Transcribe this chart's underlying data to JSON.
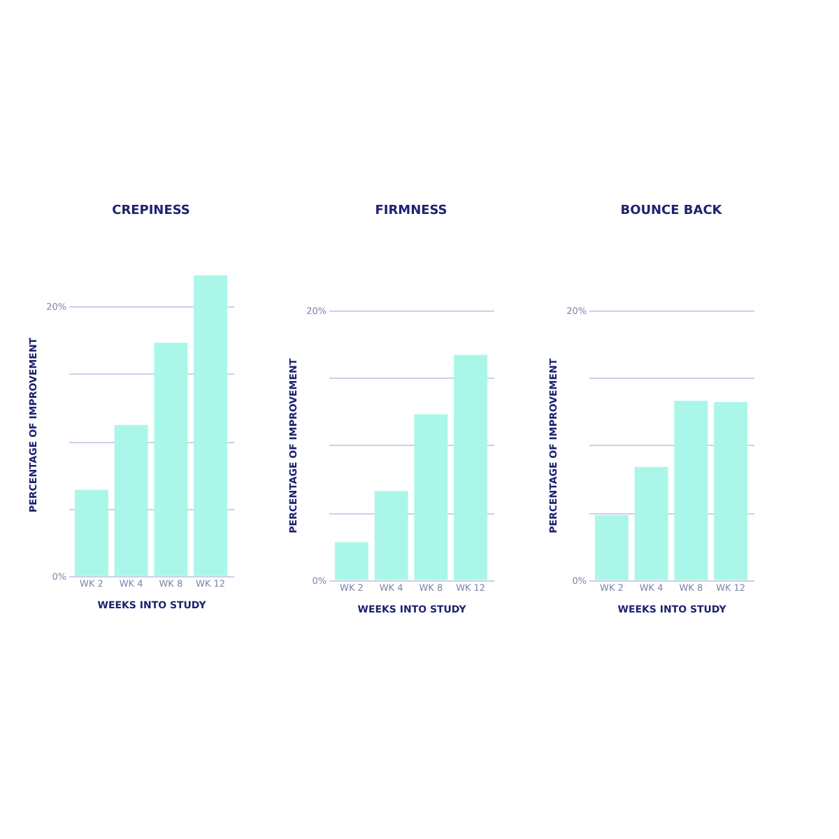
{
  "chart_data": [
    {
      "type": "bar",
      "title": "CREPINESS",
      "xlabel": "WEEKS INTO STUDY",
      "ylabel": "PERCENTAGE OF IMPROVEMENT",
      "categories": [
        "WK 2",
        "WK 4",
        "WK 8",
        "WK 12"
      ],
      "values": [
        6.4,
        11.2,
        17.3,
        22.3
      ],
      "color": "#aaf7e9",
      "ylim": [
        0,
        22.5
      ],
      "yticks": [
        {
          "value": 0,
          "label": "0%"
        },
        {
          "value": 5,
          "label": null
        },
        {
          "value": 10,
          "label": null
        },
        {
          "value": 15,
          "label": null
        },
        {
          "value": 20,
          "label": "20%"
        }
      ],
      "grid": "y"
    },
    {
      "type": "bar",
      "title": "FIRMNESS",
      "xlabel": "WEEKS INTO STUDY",
      "ylabel": "PERCENTAGE OF IMPROVEMENT",
      "categories": [
        "WK 2",
        "WK 4",
        "WK 8",
        "WK 12"
      ],
      "values": [
        2.8,
        6.6,
        12.3,
        16.7
      ],
      "color": "#aaf7e9",
      "ylim": [
        0,
        20
      ],
      "yticks": [
        {
          "value": 0,
          "label": "0%"
        },
        {
          "value": 5,
          "label": null
        },
        {
          "value": 10,
          "label": null
        },
        {
          "value": 15,
          "label": null
        },
        {
          "value": 20,
          "label": "20%"
        }
      ],
      "grid": "y"
    },
    {
      "type": "bar",
      "title": "BOUNCE BACK",
      "xlabel": "WEEKS INTO STUDY",
      "ylabel": "PERCENTAGE OF IMPROVEMENT",
      "categories": [
        "WK 2",
        "WK 4",
        "WK 8",
        "WK 12"
      ],
      "values": [
        4.8,
        8.4,
        13.3,
        13.2
      ],
      "color": "#aaf7e9",
      "ylim": [
        0,
        20
      ],
      "yticks": [
        {
          "value": 0,
          "label": "0%"
        },
        {
          "value": 5,
          "label": null
        },
        {
          "value": 10,
          "label": null
        },
        {
          "value": 15,
          "label": null
        },
        {
          "value": 20,
          "label": "20%"
        }
      ],
      "grid": "y"
    }
  ]
}
